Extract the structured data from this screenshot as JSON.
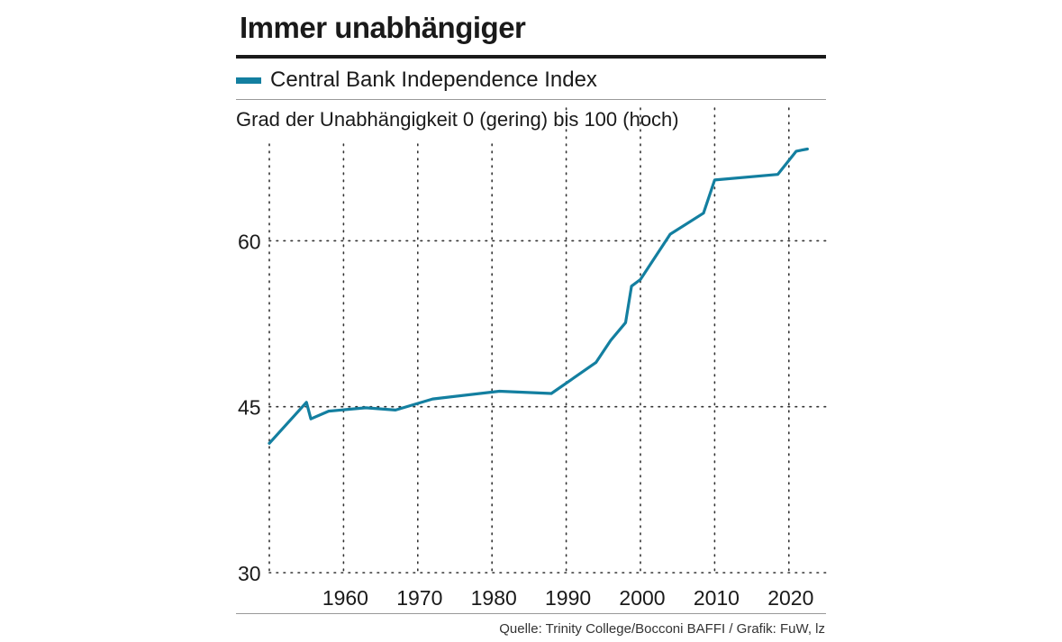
{
  "chart_data": {
    "type": "line",
    "title": "Immer unabhängiger",
    "ylabel": "Grad der Unabhängigkeit 0 (gering) bis 100 (hoch)",
    "xlabel": "",
    "source": "Quelle: Trinity College/Bocconi BAFFI / Grafik: FuW, lz",
    "legend": "top-left",
    "grid": true,
    "xlim": [
      1950,
      2025
    ],
    "ylim": [
      30,
      72
    ],
    "x_ticks": [
      "1960",
      "1970",
      "1980",
      "1990",
      "2000",
      "2010",
      "2020"
    ],
    "y_ticks": [
      "30",
      "45",
      "60"
    ],
    "series": [
      {
        "name": "Central Bank Independence Index",
        "color": "#137fa0",
        "x": [
          1950,
          1955,
          1955.6,
          1958,
          1963,
          1967,
          1972,
          1981,
          1988,
          1994,
          1996,
          1998,
          1998.8,
          2000,
          2004,
          2008.5,
          2010,
          2018.5,
          2021,
          2022.5
        ],
        "y": [
          41.7,
          45.4,
          43.9,
          44.6,
          44.9,
          44.7,
          45.7,
          46.4,
          46.2,
          49.0,
          51.0,
          52.6,
          55.9,
          56.5,
          60.6,
          62.5,
          65.5,
          66.0,
          68.1,
          68.3
        ]
      }
    ]
  }
}
